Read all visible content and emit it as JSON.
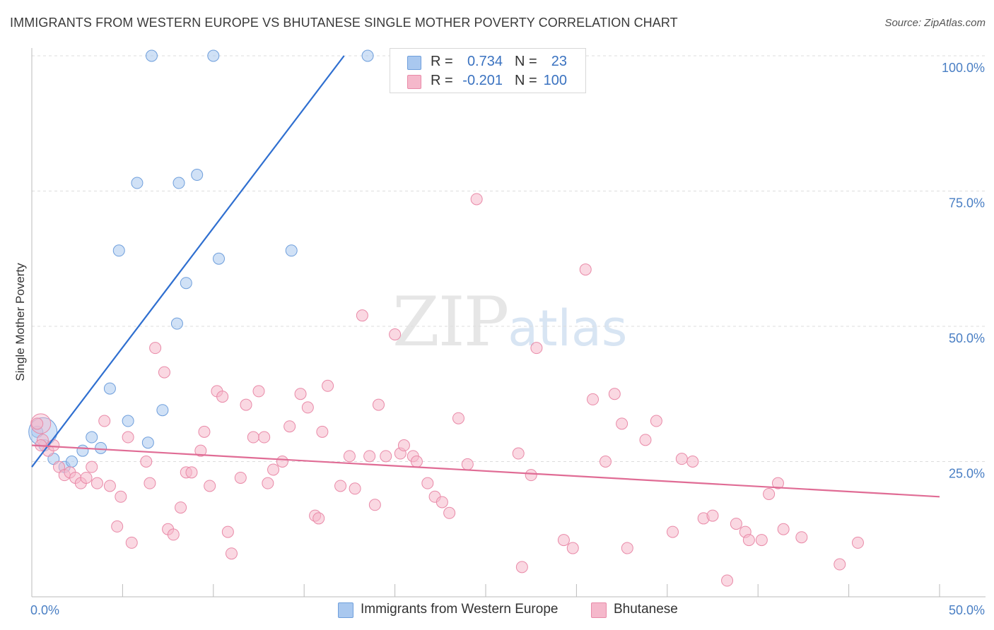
{
  "title": "IMMIGRANTS FROM WESTERN EUROPE VS BHUTANESE SINGLE MOTHER POVERTY CORRELATION CHART",
  "source": "Source: ZipAtlas.com",
  "watermark": {
    "zip": "ZIP",
    "atlas": "atlas"
  },
  "legend": {
    "series": [
      {
        "r_label": "R =",
        "r_value": "0.734",
        "n_label": "N =",
        "n_value": "23",
        "color": "#a9c8ef",
        "stroke": "#6f9fdc"
      },
      {
        "r_label": "R =",
        "r_value": "-0.201",
        "n_label": "N =",
        "n_value": "100",
        "color": "#f5b8cb",
        "stroke": "#e98aa8"
      }
    ]
  },
  "bottom_legend": [
    {
      "label": "Immigrants from Western Europe",
      "color": "#a9c8ef",
      "stroke": "#6f9fdc"
    },
    {
      "label": "Bhutanese",
      "color": "#f5b8cb",
      "stroke": "#e98aa8"
    }
  ],
  "chart_data": {
    "type": "scatter",
    "title": "IMMIGRANTS FROM WESTERN EUROPE VS BHUTANESE SINGLE MOTHER POVERTY CORRELATION CHART",
    "xlabel": "",
    "ylabel": "Single Mother Poverty",
    "xlim": [
      0,
      50
    ],
    "ylim": [
      0,
      100
    ],
    "x_tick_labels": [
      "0.0%",
      "50.0%"
    ],
    "y_ticks": [
      25,
      50,
      75,
      100
    ],
    "y_tick_labels": [
      "25.0%",
      "50.0%",
      "75.0%",
      "100.0%"
    ],
    "grid": true,
    "series": [
      {
        "name": "Immigrants from Western Europe",
        "color": "#6f9fdc",
        "fill": "#a9c8ef",
        "trend": {
          "x": [
            0.0,
            17.2
          ],
          "y": [
            24.0,
            100.0
          ],
          "color": "#2f6fd0"
        },
        "points": [
          [
            0.3,
            30.5
          ],
          [
            0.7,
            28.0
          ],
          [
            1.2,
            25.5
          ],
          [
            1.8,
            24.0
          ],
          [
            2.2,
            25.0
          ],
          [
            2.8,
            27.0
          ],
          [
            3.3,
            29.5
          ],
          [
            3.8,
            27.5
          ],
          [
            4.3,
            38.5
          ],
          [
            4.8,
            64.0
          ],
          [
            5.3,
            32.5
          ],
          [
            5.8,
            76.5
          ],
          [
            6.4,
            28.5
          ],
          [
            6.6,
            100.0
          ],
          [
            7.2,
            34.5
          ],
          [
            8.0,
            50.5
          ],
          [
            8.1,
            76.5
          ],
          [
            8.5,
            58.0
          ],
          [
            9.1,
            78.0
          ],
          [
            10.0,
            100.0
          ],
          [
            10.3,
            62.5
          ],
          [
            14.3,
            64.0
          ],
          [
            18.5,
            100.0
          ]
        ],
        "big_point": [
          0.3,
          30.5
        ]
      },
      {
        "name": "Bhutanese",
        "color": "#e98aa8",
        "fill": "#f5b8cb",
        "trend": {
          "x": [
            0.0,
            50.0
          ],
          "y": [
            28.0,
            18.5
          ],
          "color": "#e06c95"
        },
        "points": [
          [
            0.3,
            32.0
          ],
          [
            0.6,
            29.0
          ],
          [
            0.9,
            27.0
          ],
          [
            1.2,
            28.0
          ],
          [
            1.5,
            24.0
          ],
          [
            1.8,
            22.5
          ],
          [
            2.1,
            23.0
          ],
          [
            2.4,
            22.0
          ],
          [
            2.7,
            21.0
          ],
          [
            3.0,
            22.0
          ],
          [
            3.3,
            24.0
          ],
          [
            3.6,
            21.0
          ],
          [
            4.0,
            32.5
          ],
          [
            4.3,
            20.5
          ],
          [
            4.7,
            13.0
          ],
          [
            4.9,
            18.5
          ],
          [
            5.3,
            29.5
          ],
          [
            5.5,
            10.0
          ],
          [
            6.3,
            25.0
          ],
          [
            6.5,
            21.0
          ],
          [
            6.8,
            46.0
          ],
          [
            7.3,
            41.5
          ],
          [
            7.5,
            12.5
          ],
          [
            7.8,
            11.5
          ],
          [
            8.2,
            16.5
          ],
          [
            8.5,
            23.0
          ],
          [
            8.8,
            23.0
          ],
          [
            9.3,
            27.0
          ],
          [
            9.5,
            30.5
          ],
          [
            9.8,
            20.5
          ],
          [
            10.2,
            38.0
          ],
          [
            10.5,
            37.0
          ],
          [
            10.8,
            12.0
          ],
          [
            11.0,
            8.0
          ],
          [
            11.5,
            22.0
          ],
          [
            11.8,
            35.5
          ],
          [
            12.2,
            29.5
          ],
          [
            12.5,
            38.0
          ],
          [
            12.8,
            29.5
          ],
          [
            13.0,
            21.0
          ],
          [
            13.3,
            23.5
          ],
          [
            13.8,
            25.0
          ],
          [
            14.2,
            31.5
          ],
          [
            14.8,
            37.5
          ],
          [
            15.2,
            35.0
          ],
          [
            15.6,
            15.0
          ],
          [
            15.8,
            14.5
          ],
          [
            16.0,
            30.5
          ],
          [
            16.3,
            39.0
          ],
          [
            17.0,
            20.5
          ],
          [
            17.5,
            26.0
          ],
          [
            17.8,
            20.0
          ],
          [
            18.2,
            52.0
          ],
          [
            18.6,
            26.0
          ],
          [
            18.9,
            17.0
          ],
          [
            19.1,
            35.5
          ],
          [
            19.5,
            26.0
          ],
          [
            20.0,
            48.5
          ],
          [
            20.3,
            26.5
          ],
          [
            20.5,
            28.0
          ],
          [
            21.0,
            26.0
          ],
          [
            21.2,
            25.0
          ],
          [
            21.8,
            21.0
          ],
          [
            22.2,
            18.5
          ],
          [
            22.6,
            17.5
          ],
          [
            23.0,
            15.5
          ],
          [
            23.5,
            33.0
          ],
          [
            24.0,
            24.5
          ],
          [
            24.5,
            73.5
          ],
          [
            26.8,
            26.5
          ],
          [
            27.0,
            5.5
          ],
          [
            27.5,
            22.5
          ],
          [
            27.8,
            46.0
          ],
          [
            29.3,
            10.5
          ],
          [
            29.8,
            9.0
          ],
          [
            30.5,
            60.5
          ],
          [
            30.9,
            36.5
          ],
          [
            31.6,
            25.0
          ],
          [
            32.1,
            37.5
          ],
          [
            32.5,
            32.0
          ],
          [
            32.8,
            9.0
          ],
          [
            33.8,
            29.0
          ],
          [
            34.4,
            32.5
          ],
          [
            35.3,
            12.0
          ],
          [
            35.8,
            25.5
          ],
          [
            36.4,
            25.0
          ],
          [
            37.0,
            14.5
          ],
          [
            37.5,
            15.0
          ],
          [
            38.3,
            3.0
          ],
          [
            38.8,
            13.5
          ],
          [
            39.3,
            12.0
          ],
          [
            39.5,
            10.5
          ],
          [
            40.2,
            10.5
          ],
          [
            40.6,
            19.0
          ],
          [
            41.1,
            21.0
          ],
          [
            41.4,
            12.5
          ],
          [
            42.4,
            11.0
          ],
          [
            44.5,
            6.0
          ],
          [
            45.5,
            10.0
          ],
          [
            0.5,
            28.0
          ]
        ]
      }
    ]
  }
}
